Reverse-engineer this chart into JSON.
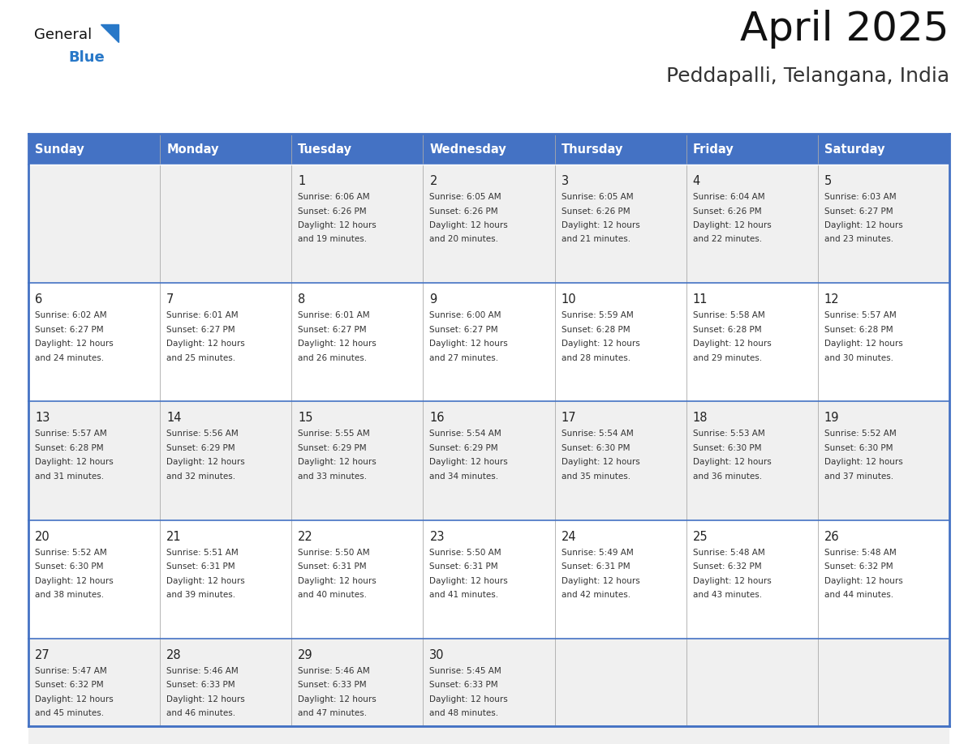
{
  "title": "April 2025",
  "subtitle": "Peddapalli, Telangana, India",
  "days_of_week": [
    "Sunday",
    "Monday",
    "Tuesday",
    "Wednesday",
    "Thursday",
    "Friday",
    "Saturday"
  ],
  "header_bg": "#4472C4",
  "header_text": "#FFFFFF",
  "row_bg_odd": "#F0F0F0",
  "row_bg_even": "#FFFFFF",
  "border_color": "#4472C4",
  "cell_line_color": "#4472C4",
  "day_num_color": "#222222",
  "cell_text_color": "#333333",
  "title_color": "#111111",
  "subtitle_color": "#333333",
  "logo_general_color": "#111111",
  "logo_blue_color": "#2878C8",
  "fig_width": 11.88,
  "fig_height": 9.18,
  "dpi": 100,
  "calendar_data": [
    [
      {
        "day": null,
        "sunrise": null,
        "sunset": null,
        "daylight_min": null
      },
      {
        "day": null,
        "sunrise": null,
        "sunset": null,
        "daylight_min": null
      },
      {
        "day": 1,
        "sunrise": "6:06 AM",
        "sunset": "6:26 PM",
        "daylight_min": 19
      },
      {
        "day": 2,
        "sunrise": "6:05 AM",
        "sunset": "6:26 PM",
        "daylight_min": 20
      },
      {
        "day": 3,
        "sunrise": "6:05 AM",
        "sunset": "6:26 PM",
        "daylight_min": 21
      },
      {
        "day": 4,
        "sunrise": "6:04 AM",
        "sunset": "6:26 PM",
        "daylight_min": 22
      },
      {
        "day": 5,
        "sunrise": "6:03 AM",
        "sunset": "6:27 PM",
        "daylight_min": 23
      }
    ],
    [
      {
        "day": 6,
        "sunrise": "6:02 AM",
        "sunset": "6:27 PM",
        "daylight_min": 24
      },
      {
        "day": 7,
        "sunrise": "6:01 AM",
        "sunset": "6:27 PM",
        "daylight_min": 25
      },
      {
        "day": 8,
        "sunrise": "6:01 AM",
        "sunset": "6:27 PM",
        "daylight_min": 26
      },
      {
        "day": 9,
        "sunrise": "6:00 AM",
        "sunset": "6:27 PM",
        "daylight_min": 27
      },
      {
        "day": 10,
        "sunrise": "5:59 AM",
        "sunset": "6:28 PM",
        "daylight_min": 28
      },
      {
        "day": 11,
        "sunrise": "5:58 AM",
        "sunset": "6:28 PM",
        "daylight_min": 29
      },
      {
        "day": 12,
        "sunrise": "5:57 AM",
        "sunset": "6:28 PM",
        "daylight_min": 30
      }
    ],
    [
      {
        "day": 13,
        "sunrise": "5:57 AM",
        "sunset": "6:28 PM",
        "daylight_min": 31
      },
      {
        "day": 14,
        "sunrise": "5:56 AM",
        "sunset": "6:29 PM",
        "daylight_min": 32
      },
      {
        "day": 15,
        "sunrise": "5:55 AM",
        "sunset": "6:29 PM",
        "daylight_min": 33
      },
      {
        "day": 16,
        "sunrise": "5:54 AM",
        "sunset": "6:29 PM",
        "daylight_min": 34
      },
      {
        "day": 17,
        "sunrise": "5:54 AM",
        "sunset": "6:30 PM",
        "daylight_min": 35
      },
      {
        "day": 18,
        "sunrise": "5:53 AM",
        "sunset": "6:30 PM",
        "daylight_min": 36
      },
      {
        "day": 19,
        "sunrise": "5:52 AM",
        "sunset": "6:30 PM",
        "daylight_min": 37
      }
    ],
    [
      {
        "day": 20,
        "sunrise": "5:52 AM",
        "sunset": "6:30 PM",
        "daylight_min": 38
      },
      {
        "day": 21,
        "sunrise": "5:51 AM",
        "sunset": "6:31 PM",
        "daylight_min": 39
      },
      {
        "day": 22,
        "sunrise": "5:50 AM",
        "sunset": "6:31 PM",
        "daylight_min": 40
      },
      {
        "day": 23,
        "sunrise": "5:50 AM",
        "sunset": "6:31 PM",
        "daylight_min": 41
      },
      {
        "day": 24,
        "sunrise": "5:49 AM",
        "sunset": "6:31 PM",
        "daylight_min": 42
      },
      {
        "day": 25,
        "sunrise": "5:48 AM",
        "sunset": "6:32 PM",
        "daylight_min": 43
      },
      {
        "day": 26,
        "sunrise": "5:48 AM",
        "sunset": "6:32 PM",
        "daylight_min": 44
      }
    ],
    [
      {
        "day": 27,
        "sunrise": "5:47 AM",
        "sunset": "6:32 PM",
        "daylight_min": 45
      },
      {
        "day": 28,
        "sunrise": "5:46 AM",
        "sunset": "6:33 PM",
        "daylight_min": 46
      },
      {
        "day": 29,
        "sunrise": "5:46 AM",
        "sunset": "6:33 PM",
        "daylight_min": 47
      },
      {
        "day": 30,
        "sunrise": "5:45 AM",
        "sunset": "6:33 PM",
        "daylight_min": 48
      },
      {
        "day": null,
        "sunrise": null,
        "sunset": null,
        "daylight_min": null
      },
      {
        "day": null,
        "sunrise": null,
        "sunset": null,
        "daylight_min": null
      },
      {
        "day": null,
        "sunrise": null,
        "sunset": null,
        "daylight_min": null
      }
    ]
  ]
}
